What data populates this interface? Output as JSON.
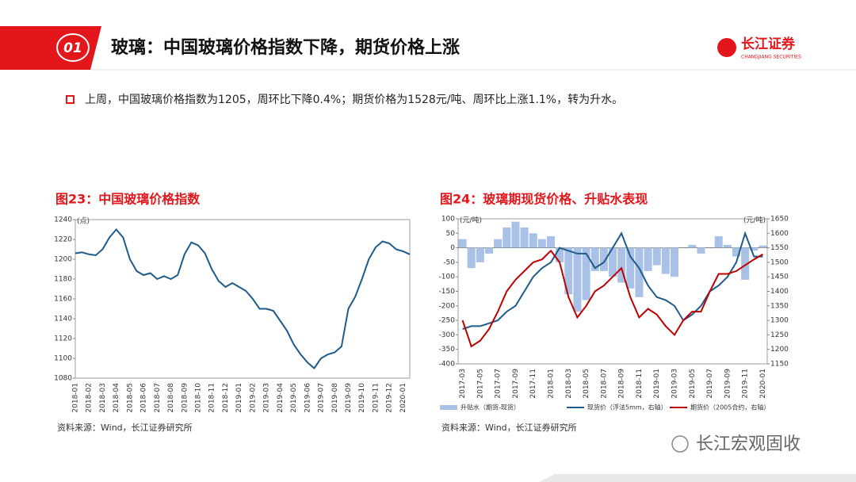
{
  "header": {
    "number": "01",
    "title": "玻璃：中国玻璃价格指数下降，期货价格上涨"
  },
  "logo": {
    "name": "长江证券",
    "name_en": "CHANGJIANG SECURITIES"
  },
  "bullet": "上周，中国玻璃价格指数为1205，周环比下降0.4%；期货价格为1528元/吨、周环比上涨1.1%，转为升水。",
  "watermark": "长江宏观固收",
  "chart_data": [
    {
      "type": "line",
      "title": "图23：中国玻璃价格指数",
      "y_unit": "(点)",
      "source": "资料来源：Wind，长江证券研究所",
      "categories": [
        "2018-01",
        null,
        "2018-02",
        null,
        "2018-03",
        null,
        "2018-04",
        null,
        "2018-05",
        null,
        "2018-06",
        null,
        "2018-07",
        null,
        "2018-08",
        null,
        "2018-09",
        null,
        "2018-10",
        null,
        "2018-11",
        null,
        "2018-12",
        null,
        "2019-01",
        null,
        "2019-02",
        null,
        "2019-03",
        null,
        "2019-04",
        null,
        "2019-05",
        null,
        "2019-06",
        null,
        "2019-07",
        null,
        "2019-08",
        null,
        "2019-09",
        null,
        "2019-10",
        null,
        "2019-11",
        null,
        "2019-12",
        null,
        "2020-01",
        null
      ],
      "series": [
        {
          "color": "#1f5b8a",
          "values": [
            1206,
            1207,
            1205,
            1204,
            1210,
            1222,
            1230,
            1222,
            1200,
            1188,
            1184,
            1186,
            1180,
            1183,
            1180,
            1184,
            1205,
            1217,
            1214,
            1206,
            1190,
            1178,
            1172,
            1176,
            1172,
            1168,
            1160,
            1150,
            1150,
            1148,
            1138,
            1128,
            1114,
            1104,
            1096,
            1090,
            1100,
            1104,
            1106,
            1112,
            1150,
            1162,
            1180,
            1200,
            1212,
            1218,
            1216,
            1210,
            1208,
            1205
          ]
        }
      ],
      "ylim": [
        1080,
        1240
      ],
      "yticks": [
        1080,
        1100,
        1120,
        1140,
        1160,
        1180,
        1200,
        1220,
        1240
      ]
    },
    {
      "type": "combo",
      "title": "图24：玻璃期现货价格、升贴水表现",
      "y_unit": "(元/吨)",
      "y2_unit": "(元/吨)",
      "source": "资料来源：Wind，长江证券研究所",
      "categories": [
        "2017-03",
        null,
        "2017-05",
        null,
        "2017-07",
        null,
        "2017-09",
        null,
        "2017-11",
        null,
        "2018-01",
        null,
        "2018-03",
        null,
        "2018-05",
        null,
        "2018-07",
        null,
        "2018-09",
        null,
        "2018-11",
        null,
        "2019-01",
        null,
        "2019-03",
        null,
        "2019-05",
        null,
        "2019-07",
        null,
        "2019-09",
        null,
        "2019-11",
        null,
        "2020-01"
      ],
      "series": [
        {
          "name": "升贴水（期货-现货）",
          "type": "bar",
          "axis": "y",
          "color": "#a9c1e6",
          "values": [
            30,
            -70,
            -50,
            -20,
            30,
            70,
            90,
            70,
            50,
            30,
            40,
            -50,
            -160,
            -220,
            -180,
            -80,
            -80,
            -100,
            -120,
            -140,
            -170,
            -80,
            -60,
            -90,
            -100,
            0,
            10,
            -20,
            0,
            40,
            10,
            -30,
            -110,
            -10,
            8
          ]
        },
        {
          "name": "现货价（浮法5mm，右轴）",
          "type": "line",
          "axis": "y2",
          "color": "#1f5b8a",
          "values": [
            1270,
            1280,
            1280,
            1290,
            1300,
            1330,
            1350,
            1400,
            1450,
            1480,
            1500,
            1550,
            1540,
            1530,
            1530,
            1480,
            1500,
            1550,
            1600,
            1520,
            1480,
            1420,
            1380,
            1370,
            1350,
            1300,
            1320,
            1350,
            1400,
            1420,
            1450,
            1500,
            1600,
            1520,
            1520
          ]
        },
        {
          "name": "期货价（2005合约，右轴）",
          "type": "line",
          "axis": "y2",
          "color": "#c00000",
          "values": [
            1300,
            1210,
            1230,
            1270,
            1330,
            1400,
            1440,
            1470,
            1500,
            1510,
            1540,
            1500,
            1380,
            1310,
            1350,
            1400,
            1420,
            1450,
            1480,
            1380,
            1310,
            1340,
            1320,
            1280,
            1250,
            1300,
            1330,
            1330,
            1400,
            1460,
            1460,
            1470,
            1490,
            1510,
            1528
          ]
        }
      ],
      "ylim": [
        -400,
        100
      ],
      "yticks": [
        -400,
        -350,
        -300,
        -250,
        -200,
        -150,
        -100,
        -50,
        0,
        50,
        100
      ],
      "y2lim": [
        1150,
        1650
      ],
      "y2ticks": [
        1150,
        1200,
        1250,
        1300,
        1350,
        1400,
        1450,
        1500,
        1550,
        1600,
        1650
      ]
    }
  ]
}
